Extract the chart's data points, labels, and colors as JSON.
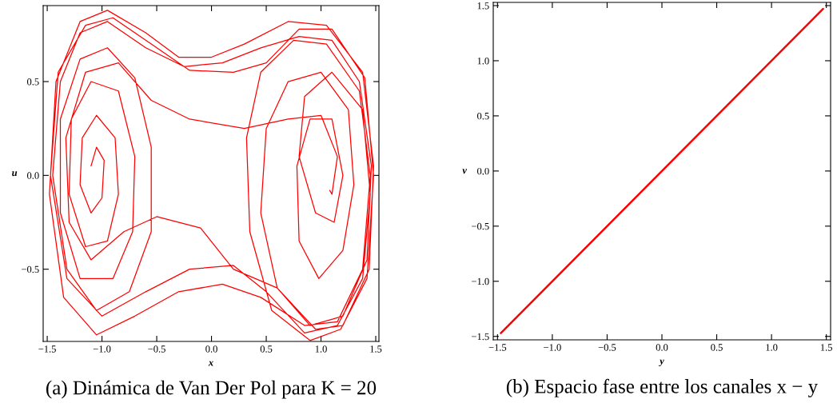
{
  "chart_data": [
    {
      "type": "line",
      "title": "(a) Dinámica de Van Der Pol para K = 20",
      "xlabel": "x",
      "ylabel": "u",
      "xlim": [
        -1.537,
        1.529
      ],
      "ylim": [
        -0.885,
        0.905
      ],
      "xticks": [
        {
          "value": -1.5,
          "label": "−1.5"
        },
        {
          "value": -1.0,
          "label": "−1.0"
        },
        {
          "value": -0.5,
          "label": "−0.5"
        },
        {
          "value": 0,
          "label": "0.0"
        },
        {
          "value": 0.5,
          "label": "0.5"
        },
        {
          "value": 1,
          "label": "1.0"
        },
        {
          "value": 1.5,
          "label": "1.5"
        }
      ],
      "yticks": [
        {
          "value": -0.5,
          "label": "−0.5"
        },
        {
          "value": 0,
          "label": "0.0"
        },
        {
          "value": 0.5,
          "label": "0.5"
        }
      ],
      "grid": false,
      "legend": false,
      "marker": "none",
      "line_style": "solid",
      "series": [
        {
          "color": "#ff0000",
          "x": [
            -1.1,
            -1.05,
            -0.98,
            -1.0,
            -1.1,
            -1.2,
            -1.18,
            -1.05,
            -0.88,
            -0.85,
            -0.95,
            -1.15,
            -1.3,
            -1.28,
            -1.1,
            -0.85,
            -0.7,
            -0.72,
            -0.9,
            -1.2,
            -1.38,
            -1.38,
            -1.2,
            -0.95,
            -0.7,
            -0.55,
            -0.55,
            -0.75,
            -1.05,
            -1.32,
            -1.45,
            -1.38,
            -1.2,
            -0.95,
            -0.6,
            -0.25,
            0.1,
            0.45,
            0.8,
            1.1,
            1.35,
            1.46,
            1.42,
            1.2,
            0.9,
            0.6,
            0.45,
            0.5,
            0.7,
            1.0,
            1.25,
            1.3,
            1.2,
            0.98,
            0.8,
            0.78,
            0.9,
            1.1,
            1.2,
            1.12,
            0.95,
            0.8,
            0.85,
            1.1,
            1.38,
            1.45,
            1.38,
            1.15,
            0.85,
            0.5,
            0.2,
            -0.2,
            -0.6,
            -1.0,
            -1.32,
            -1.47,
            -1.4,
            -1.15,
            -0.9,
            -0.55,
            -0.2,
            0.2,
            0.5,
            0.8,
            1.1,
            1.4,
            1.48,
            1.42,
            1.18,
            0.9,
            0.55,
            0.35,
            0.32,
            0.45,
            0.75,
            1.05,
            1.35,
            1.45,
            1.38,
            1.15,
            0.85,
            0.45,
            0.1,
            -0.3,
            -0.7,
            -1.05,
            -1.35,
            -1.48,
            -1.42,
            -1.2,
            -0.95,
            -0.6,
            -0.3,
            0.0,
            0.3,
            0.7,
            1.05,
            1.38,
            1.48,
            1.44,
            1.2,
            0.95,
            0.6,
            0.2,
            -0.1,
            -0.5,
            -0.8,
            -1.1,
            -1.3,
            -1.33,
            -1.15,
            -0.85,
            -0.55,
            -0.2,
            0.3,
            0.7,
            1.0,
            1.15,
            1.1,
            1.08
          ],
          "values": [
            0.05,
            0.15,
            0.08,
            -0.12,
            -0.2,
            -0.05,
            0.2,
            0.32,
            0.2,
            -0.1,
            -0.35,
            -0.38,
            -0.1,
            0.3,
            0.5,
            0.45,
            0.1,
            -0.3,
            -0.55,
            -0.55,
            -0.2,
            0.3,
            0.62,
            0.68,
            0.52,
            0.15,
            -0.3,
            -0.62,
            -0.72,
            -0.5,
            0.0,
            0.5,
            0.76,
            0.82,
            0.68,
            0.58,
            0.6,
            0.68,
            0.74,
            0.72,
            0.5,
            0.05,
            -0.45,
            -0.75,
            -0.8,
            -0.6,
            -0.2,
            0.25,
            0.5,
            0.55,
            0.35,
            -0.05,
            -0.4,
            -0.55,
            -0.35,
            0.05,
            0.3,
            0.3,
            0.0,
            -0.25,
            -0.2,
            0.1,
            0.42,
            0.55,
            0.35,
            -0.1,
            -0.55,
            -0.8,
            -0.84,
            -0.62,
            -0.48,
            -0.5,
            -0.62,
            -0.75,
            -0.55,
            0.0,
            0.55,
            0.8,
            0.84,
            0.7,
            0.56,
            0.55,
            0.6,
            0.78,
            0.78,
            0.52,
            0.0,
            -0.55,
            -0.82,
            -0.88,
            -0.72,
            -0.3,
            0.2,
            0.55,
            0.72,
            0.7,
            0.45,
            0.0,
            -0.5,
            -0.78,
            -0.8,
            -0.65,
            -0.58,
            -0.62,
            -0.75,
            -0.85,
            -0.65,
            -0.1,
            0.5,
            0.82,
            0.88,
            0.76,
            0.63,
            0.63,
            0.7,
            0.82,
            0.8,
            0.55,
            0.05,
            -0.5,
            -0.8,
            -0.82,
            -0.6,
            -0.5,
            -0.28,
            -0.22,
            -0.3,
            -0.45,
            -0.25,
            0.2,
            0.55,
            0.6,
            0.4,
            0.3,
            0.25,
            0.3,
            0.32,
            0.1,
            -0.1,
            -0.08
          ]
        }
      ]
    },
    {
      "type": "line",
      "title": "(b) Espacio fase entre los canales x − y",
      "xlabel": "y",
      "ylabel": "v",
      "xlim": [
        -1.539,
        1.539
      ],
      "ylim": [
        -1.531,
        1.529
      ],
      "xticks": [
        {
          "value": -1.5,
          "label": "−1.5"
        },
        {
          "value": -1.0,
          "label": "−1.0"
        },
        {
          "value": -0.5,
          "label": "−0.5"
        },
        {
          "value": 0,
          "label": "0.0"
        },
        {
          "value": 0.5,
          "label": "0.5"
        },
        {
          "value": 1,
          "label": "1.0"
        },
        {
          "value": 1.5,
          "label": "1.5"
        }
      ],
      "yticks": [
        {
          "value": -1.5,
          "label": "−1.5"
        },
        {
          "value": -1.0,
          "label": "−1.0"
        },
        {
          "value": -0.5,
          "label": "−0.5"
        },
        {
          "value": 0,
          "label": "0.0"
        },
        {
          "value": 0.5,
          "label": "0.5"
        },
        {
          "value": 1,
          "label": "1.0"
        },
        {
          "value": 1.5,
          "label": "1.5"
        }
      ],
      "grid": false,
      "legend": false,
      "marker": "none",
      "line_style": "solid",
      "series": [
        {
          "color": "#ff0000",
          "x": [
            -1.47,
            1.47
          ],
          "values": [
            -1.47,
            1.47
          ]
        }
      ]
    }
  ]
}
